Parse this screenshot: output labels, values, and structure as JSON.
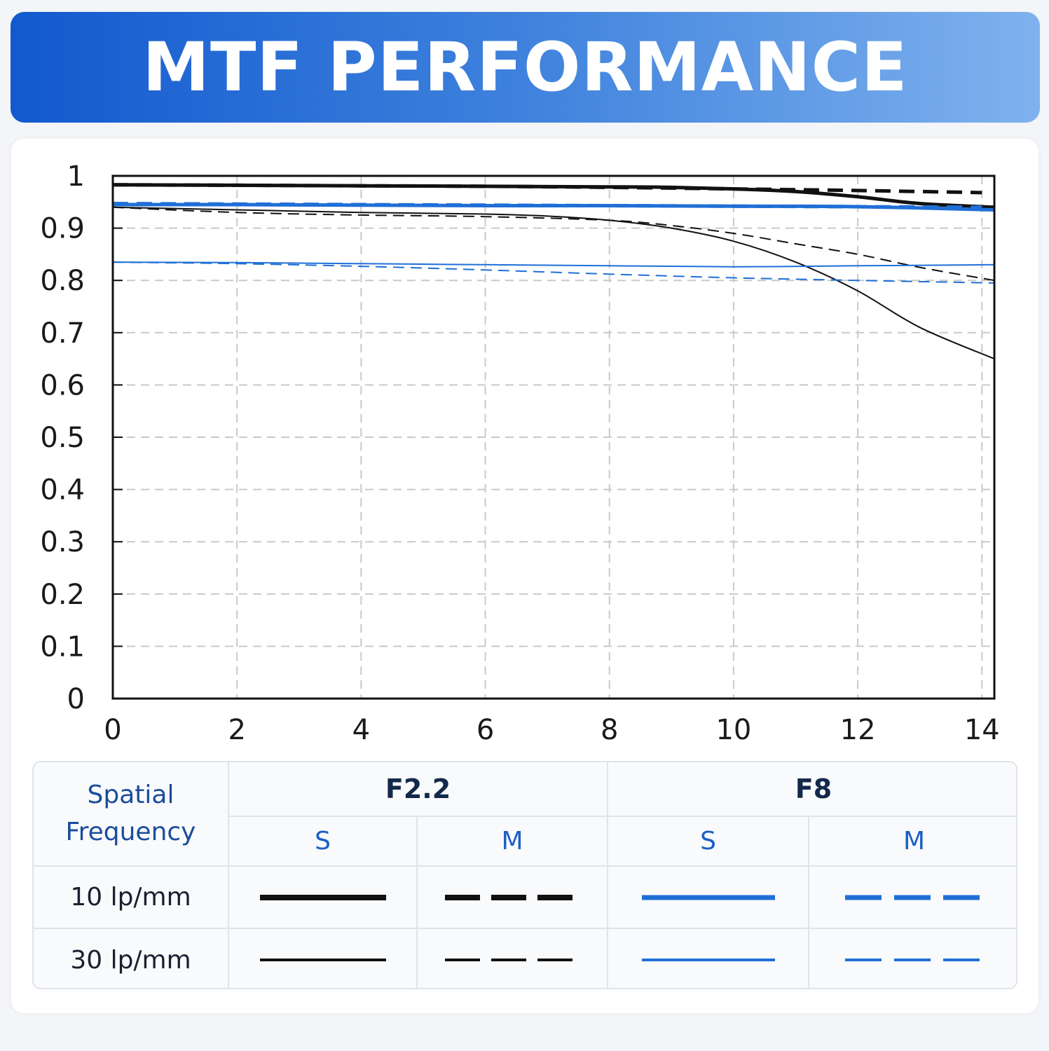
{
  "header": {
    "title": "MTF PERFORMANCE"
  },
  "colors": {
    "black": "#111111",
    "blue": "#1f6fd6",
    "grid": "#c9c9c9"
  },
  "chart_data": {
    "type": "line",
    "title": "",
    "xlabel": "",
    "ylabel": "",
    "xlim": [
      0,
      14.2
    ],
    "ylim": [
      0,
      1
    ],
    "x_ticks": [
      "0",
      "2",
      "4",
      "6",
      "8",
      "10",
      "12",
      "14"
    ],
    "x_tick_values": [
      0,
      2,
      4,
      6,
      8,
      10,
      12,
      14
    ],
    "y_ticks": [
      "0",
      "0.1",
      "0.2",
      "0.3",
      "0.4",
      "0.5",
      "0.6",
      "0.7",
      "0.8",
      "0.9",
      "1"
    ],
    "y_tick_values": [
      0,
      0.1,
      0.2,
      0.3,
      0.4,
      0.5,
      0.6,
      0.7,
      0.8,
      0.9,
      1
    ],
    "grid": true,
    "series": [
      {
        "key": "f22_s_10",
        "color": "black",
        "dashed": false,
        "weight": "thick",
        "x": [
          0,
          2,
          4,
          6,
          8,
          9,
          10,
          11,
          12,
          13,
          14.2
        ],
        "y": [
          0.983,
          0.982,
          0.981,
          0.98,
          0.979,
          0.978,
          0.975,
          0.97,
          0.96,
          0.947,
          0.94
        ]
      },
      {
        "key": "f22_m_10",
        "color": "black",
        "dashed": true,
        "weight": "thick",
        "x": [
          0,
          2,
          4,
          6,
          8,
          10,
          12,
          14
        ],
        "y": [
          0.983,
          0.982,
          0.981,
          0.98,
          0.978,
          0.975,
          0.972,
          0.968
        ]
      },
      {
        "key": "f8_s_10",
        "color": "blue",
        "dashed": false,
        "weight": "thick",
        "x": [
          0,
          2,
          4,
          6,
          8,
          10,
          12,
          14.2
        ],
        "y": [
          0.945,
          0.945,
          0.944,
          0.943,
          0.943,
          0.942,
          0.941,
          0.935
        ]
      },
      {
        "key": "f8_m_10",
        "color": "blue",
        "dashed": true,
        "weight": "thick",
        "x": [
          0,
          2,
          4,
          6,
          8,
          10,
          12,
          14
        ],
        "y": [
          0.947,
          0.946,
          0.945,
          0.944,
          0.943,
          0.942,
          0.941,
          0.94
        ]
      },
      {
        "key": "f22_s_30",
        "color": "black",
        "dashed": false,
        "weight": "thin",
        "x": [
          0,
          2,
          4,
          6,
          7,
          8,
          9,
          10,
          11,
          12,
          13,
          14.2
        ],
        "y": [
          0.94,
          0.935,
          0.93,
          0.927,
          0.923,
          0.915,
          0.9,
          0.875,
          0.835,
          0.78,
          0.71,
          0.65
        ]
      },
      {
        "key": "f22_m_30",
        "color": "black",
        "dashed": true,
        "weight": "thin",
        "x": [
          0,
          2,
          4,
          6,
          8,
          9,
          10,
          11,
          12,
          13,
          14.2
        ],
        "y": [
          0.94,
          0.93,
          0.925,
          0.922,
          0.915,
          0.905,
          0.89,
          0.87,
          0.85,
          0.825,
          0.8
        ]
      },
      {
        "key": "f8_s_30",
        "color": "blue",
        "dashed": false,
        "weight": "thin",
        "x": [
          0,
          2,
          4,
          6,
          8,
          10,
          12,
          14.2
        ],
        "y": [
          0.835,
          0.834,
          0.832,
          0.83,
          0.828,
          0.826,
          0.828,
          0.83
        ]
      },
      {
        "key": "f8_m_30",
        "color": "blue",
        "dashed": true,
        "weight": "thin",
        "x": [
          0,
          2,
          4,
          6,
          8,
          10,
          12,
          14.2
        ],
        "y": [
          0.835,
          0.832,
          0.827,
          0.82,
          0.812,
          0.805,
          0.8,
          0.795
        ]
      }
    ]
  },
  "legend": {
    "spatial_frequency": [
      "Spatial",
      "Frequency"
    ],
    "apertures": [
      "F2.2",
      "F8"
    ],
    "sub_s": "S",
    "sub_m": "M",
    "rows": [
      "10 lp/mm",
      "30 lp/mm"
    ]
  }
}
